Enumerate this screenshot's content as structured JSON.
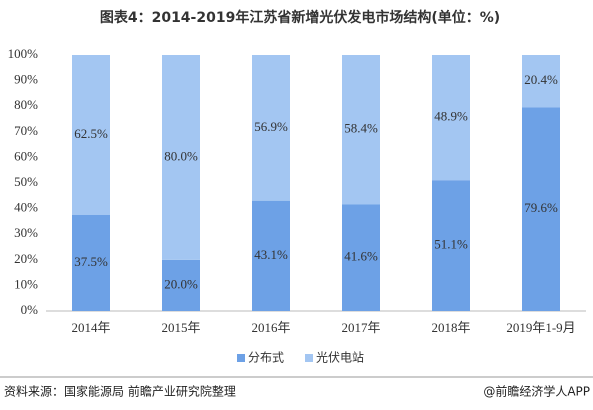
{
  "chart_data": {
    "type": "stacked_bar",
    "title": "图表4：2014-2019年江苏省新增光伏发电市场结构(单位：%)",
    "categories": [
      "2014年",
      "2015年",
      "2016年",
      "2017年",
      "2018年",
      "2019年1-9月"
    ],
    "series": [
      {
        "name": "分布式",
        "color": "#6da1e6",
        "values": [
          37.5,
          20.0,
          43.1,
          41.6,
          51.1,
          79.6
        ],
        "value_labels": [
          "37.5%",
          "20.0%",
          "43.1%",
          "41.6%",
          "51.1%",
          "79.6%"
        ]
      },
      {
        "name": "光伏电站",
        "color": "#a3c6f2",
        "values": [
          62.5,
          80.0,
          56.9,
          58.4,
          48.9,
          20.4
        ],
        "value_labels": [
          "62.5%",
          "80.0%",
          "56.9%",
          "58.4%",
          "48.9%",
          "20.4%"
        ]
      }
    ],
    "ylim": [
      0,
      100
    ],
    "yticks": [
      {
        "value": 0,
        "label": "0%"
      },
      {
        "value": 10,
        "label": "10%"
      },
      {
        "value": 20,
        "label": "20%"
      },
      {
        "value": 30,
        "label": "30%"
      },
      {
        "value": 40,
        "label": "40%"
      },
      {
        "value": 50,
        "label": "50%"
      },
      {
        "value": 60,
        "label": "60%"
      },
      {
        "value": 70,
        "label": "70%"
      },
      {
        "value": 80,
        "label": "80%"
      },
      {
        "value": 90,
        "label": "90%"
      },
      {
        "value": 100,
        "label": "100%"
      }
    ],
    "grid": false,
    "legend": "bottom",
    "source": "资料来源：国家能源局 前瞻产业研究院整理",
    "credit": "@前瞻经济学人APP"
  }
}
